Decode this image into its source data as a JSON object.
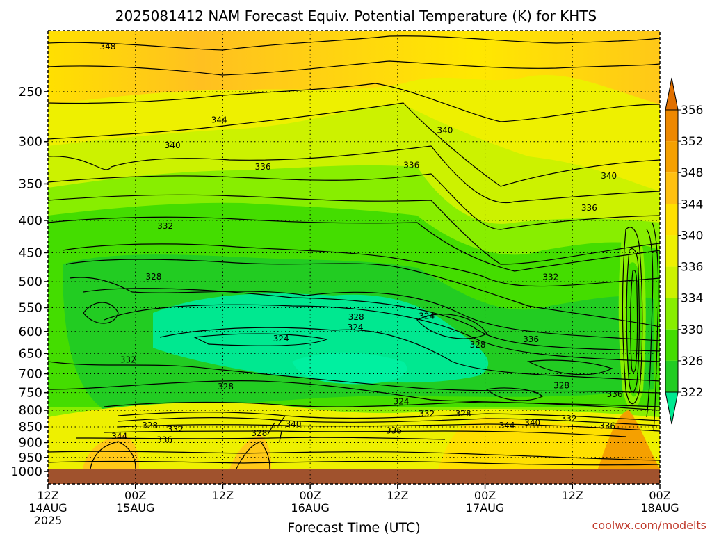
{
  "chart_data": {
    "type": "heatmap",
    "title": "2025081412 NAM Forecast Equiv. Potential Temperature (K) for KHTS",
    "xlabel": "Forecast Time (UTC)",
    "ylabel": "",
    "credit": "coolwx.com/modelts",
    "y_axis": {
      "scale": "log",
      "range": [
        1000,
        200
      ],
      "ticks": [
        250,
        300,
        350,
        400,
        450,
        500,
        550,
        600,
        650,
        700,
        750,
        800,
        850,
        900,
        950,
        1000
      ]
    },
    "x_axis": {
      "range_hours": [
        0,
        84
      ],
      "ticks": [
        {
          "hour": 0,
          "line1": "12Z",
          "line2": "14AUG",
          "line3": "2025"
        },
        {
          "hour": 12,
          "line1": "00Z",
          "line2": "15AUG",
          "line3": ""
        },
        {
          "hour": 24,
          "line1": "12Z",
          "line2": "",
          "line3": ""
        },
        {
          "hour": 36,
          "line1": "00Z",
          "line2": "16AUG",
          "line3": ""
        },
        {
          "hour": 48,
          "line1": "12Z",
          "line2": "",
          "line3": ""
        },
        {
          "hour": 60,
          "line1": "00Z",
          "line2": "17AUG",
          "line3": ""
        },
        {
          "hour": 72,
          "line1": "12Z",
          "line2": "",
          "line3": ""
        },
        {
          "hour": 84,
          "line1": "00Z",
          "line2": "18AUG",
          "line3": ""
        }
      ]
    },
    "colorbar": {
      "labels": [
        322,
        326,
        330,
        334,
        336,
        340,
        344,
        348,
        352,
        356
      ],
      "colors": [
        "#00e890",
        "#22cc22",
        "#44dd00",
        "#88ee00",
        "#ccf200",
        "#eef000",
        "#ffe000",
        "#ffc010",
        "#f5a000",
        "#ee8800",
        "#e07000"
      ]
    },
    "grid": "dotted",
    "contour_labels": [
      {
        "value": "348",
        "hour": 8.2,
        "p": 212
      },
      {
        "value": "344",
        "hour": 23.5,
        "p": 277
      },
      {
        "value": "340",
        "hour": 17.1,
        "p": 304
      },
      {
        "value": "340",
        "hour": 54.5,
        "p": 288
      },
      {
        "value": "340",
        "hour": 77.0,
        "p": 340
      },
      {
        "value": "336",
        "hour": 29.5,
        "p": 329
      },
      {
        "value": "336",
        "hour": 49.9,
        "p": 327
      },
      {
        "value": "336",
        "hour": 74.3,
        "p": 382
      },
      {
        "value": "332",
        "hour": 16.1,
        "p": 408
      },
      {
        "value": "332",
        "hour": 69.0,
        "p": 492
      },
      {
        "value": "332",
        "hour": 11.0,
        "p": 665
      },
      {
        "value": "328",
        "hour": 14.5,
        "p": 491
      },
      {
        "value": "328",
        "hour": 42.3,
        "p": 569
      },
      {
        "value": "328",
        "hour": 59.0,
        "p": 630
      },
      {
        "value": "328",
        "hour": 24.4,
        "p": 734
      },
      {
        "value": "328",
        "hour": 70.5,
        "p": 731
      },
      {
        "value": "328",
        "hour": 57.0,
        "p": 810
      },
      {
        "value": "328",
        "hour": 14.0,
        "p": 846
      },
      {
        "value": "328",
        "hour": 29.0,
        "p": 870
      },
      {
        "value": "324",
        "hour": 32.0,
        "p": 616
      },
      {
        "value": "324",
        "hour": 42.2,
        "p": 591
      },
      {
        "value": "324",
        "hour": 52.0,
        "p": 567
      },
      {
        "value": "324",
        "hour": 48.5,
        "p": 775
      },
      {
        "value": "332",
        "hour": 52.0,
        "p": 810
      },
      {
        "value": "332",
        "hour": 17.5,
        "p": 858
      },
      {
        "value": "332",
        "hour": 71.5,
        "p": 825
      },
      {
        "value": "336",
        "hour": 16.0,
        "p": 891
      },
      {
        "value": "336",
        "hour": 47.5,
        "p": 862
      },
      {
        "value": "336",
        "hour": 76.8,
        "p": 847
      },
      {
        "value": "336",
        "hour": 66.3,
        "p": 617
      },
      {
        "value": "336",
        "hour": 77.8,
        "p": 754
      },
      {
        "value": "344",
        "hour": 9.8,
        "p": 880
      },
      {
        "value": "344",
        "hour": 63.0,
        "p": 846
      },
      {
        "value": "340",
        "hour": 66.5,
        "p": 837
      },
      {
        "value": "340",
        "hour": 33.7,
        "p": 841
      }
    ]
  }
}
